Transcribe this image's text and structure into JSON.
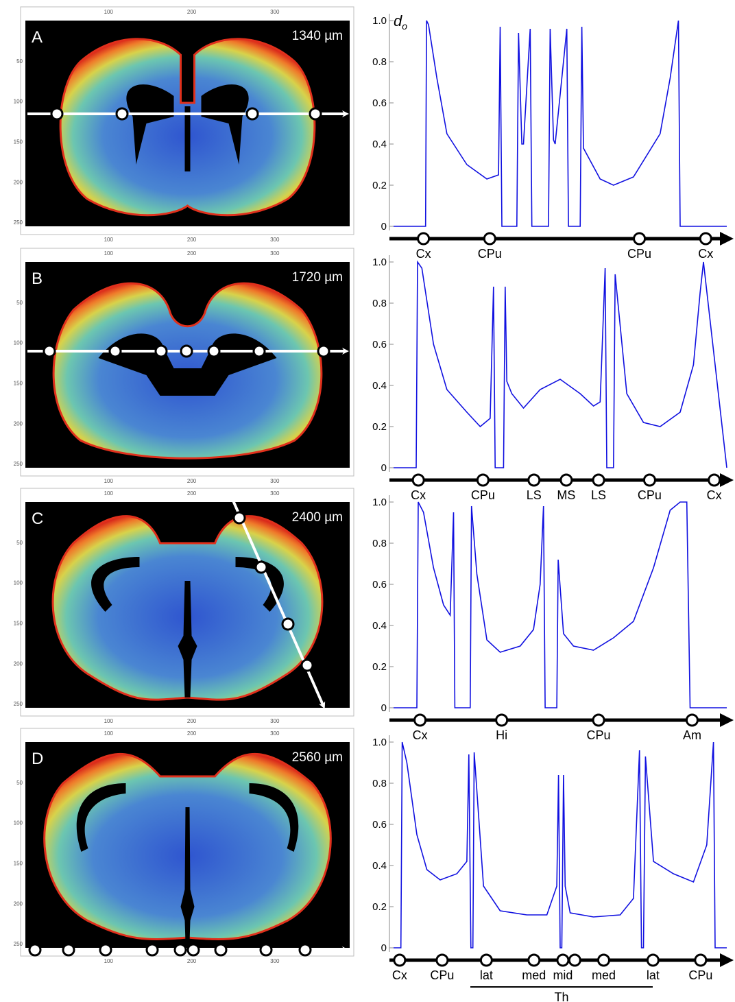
{
  "panels": [
    {
      "label": "A",
      "depth": "1340 µm",
      "structures": [
        {
          "label": "Cx",
          "pos": 0.1
        },
        {
          "label": "CPu",
          "pos": 0.295
        },
        {
          "label": "CPu",
          "pos": 0.735
        },
        {
          "label": "Cx",
          "pos": 0.93
        }
      ]
    },
    {
      "label": "B",
      "depth": "1720 µm",
      "structures": [
        {
          "label": "Cx",
          "pos": 0.085
        },
        {
          "label": "CPu",
          "pos": 0.275
        },
        {
          "label": "LS",
          "pos": 0.425
        },
        {
          "label": "MS",
          "pos": 0.52
        },
        {
          "label": "LS",
          "pos": 0.615
        },
        {
          "label": "CPu",
          "pos": 0.765
        },
        {
          "label": "Cx",
          "pos": 0.955
        }
      ]
    },
    {
      "label": "C",
      "depth": "2400 µm",
      "structures": [
        {
          "label": "Cx",
          "pos": 0.09
        },
        {
          "label": "Hi",
          "pos": 0.33
        },
        {
          "label": "CPu",
          "pos": 0.615
        },
        {
          "label": "Am",
          "pos": 0.89
        }
      ]
    },
    {
      "label": "D",
      "depth": "2560 µm",
      "structures": [
        {
          "label": "Cx",
          "pos": 0.03
        },
        {
          "label": "CPu",
          "pos": 0.155
        },
        {
          "label": "lat",
          "pos": 0.285
        },
        {
          "label": "med",
          "pos": 0.425
        },
        {
          "label": "mid",
          "pos": 0.51
        },
        {
          "label": "",
          "pos": 0.545
        },
        {
          "label": "med",
          "pos": 0.63
        },
        {
          "label": "lat",
          "pos": 0.775
        },
        {
          "label": "CPu",
          "pos": 0.915
        }
      ],
      "group_label": "Th"
    }
  ],
  "image_axes": {
    "x_ticks": [
      100,
      200,
      300
    ],
    "y_ticks": [
      50,
      100,
      150,
      200,
      250
    ],
    "x_range": [
      0,
      390
    ],
    "y_range": [
      0,
      255
    ]
  },
  "colors": {
    "trace": "#1010e0",
    "brain_fill": "#3f6fd0",
    "brain_edge": "#e0301c",
    "background": "#000000",
    "overlay": "#ffffff"
  },
  "chart_data": [
    {
      "type": "line",
      "panel": "A",
      "ylabel": "d",
      "ylabel_sub": "o",
      "ylim": [
        0,
        1.0
      ],
      "y_ticks": [
        "0",
        "0.2",
        "0.4",
        "0.6",
        "0.8",
        "1.0"
      ],
      "x": [
        0,
        0.096,
        0.099,
        0.105,
        0.13,
        0.16,
        0.22,
        0.28,
        0.315,
        0.32,
        0.325,
        0.335,
        0.34,
        0.37,
        0.375,
        0.385,
        0.39,
        0.41,
        0.415,
        0.465,
        0.47,
        0.48,
        0.485,
        0.52,
        0.525,
        0.56,
        0.565,
        0.57,
        0.62,
        0.66,
        0.72,
        0.8,
        0.83,
        0.855,
        0.86,
        1.0
      ],
      "values": [
        0,
        0,
        1.0,
        0.98,
        0.72,
        0.45,
        0.3,
        0.23,
        0.25,
        0.97,
        0.0,
        0.0,
        0.0,
        0.0,
        0.94,
        0.4,
        0.4,
        0.96,
        0.0,
        0.0,
        0.96,
        0.42,
        0.4,
        0.96,
        0.0,
        0.0,
        0.97,
        0.38,
        0.23,
        0.2,
        0.24,
        0.45,
        0.72,
        1.0,
        0.0,
        0
      ]
    },
    {
      "type": "line",
      "panel": "B",
      "ylabel": "",
      "ylim": [
        0,
        1.0
      ],
      "y_ticks": [
        "0",
        "0.2",
        "0.4",
        "0.6",
        "0.8",
        "1.0"
      ],
      "x": [
        0,
        0.068,
        0.072,
        0.085,
        0.12,
        0.16,
        0.22,
        0.26,
        0.29,
        0.3,
        0.305,
        0.33,
        0.335,
        0.34,
        0.355,
        0.39,
        0.44,
        0.5,
        0.56,
        0.6,
        0.62,
        0.635,
        0.64,
        0.66,
        0.665,
        0.7,
        0.75,
        0.8,
        0.86,
        0.9,
        0.92,
        0.93,
        1.0
      ],
      "values": [
        0,
        0,
        1.0,
        0.97,
        0.6,
        0.38,
        0.27,
        0.2,
        0.24,
        0.88,
        0.0,
        0.0,
        0.88,
        0.42,
        0.36,
        0.29,
        0.38,
        0.43,
        0.36,
        0.3,
        0.32,
        0.97,
        0.0,
        0.0,
        0.94,
        0.36,
        0.22,
        0.2,
        0.27,
        0.5,
        0.85,
        1.0,
        0
      ]
    },
    {
      "type": "line",
      "panel": "C",
      "ylabel": "",
      "ylim": [
        0,
        1.0
      ],
      "y_ticks": [
        "0",
        "0.2",
        "0.4",
        "0.6",
        "0.8",
        "1.0"
      ],
      "x": [
        0,
        0.07,
        0.074,
        0.09,
        0.12,
        0.15,
        0.17,
        0.18,
        0.184,
        0.23,
        0.234,
        0.25,
        0.28,
        0.32,
        0.38,
        0.42,
        0.44,
        0.45,
        0.455,
        0.49,
        0.494,
        0.51,
        0.54,
        0.6,
        0.66,
        0.72,
        0.78,
        0.83,
        0.86,
        0.88,
        0.89,
        1.0
      ],
      "values": [
        0,
        0,
        1.0,
        0.95,
        0.68,
        0.5,
        0.45,
        0.95,
        0.0,
        0.0,
        0.98,
        0.65,
        0.33,
        0.27,
        0.3,
        0.38,
        0.6,
        0.98,
        0.0,
        0.0,
        0.72,
        0.36,
        0.3,
        0.28,
        0.34,
        0.42,
        0.68,
        0.96,
        1.0,
        1.0,
        0.0,
        0
      ]
    },
    {
      "type": "line",
      "panel": "D",
      "ylabel": "",
      "ylim": [
        0,
        1.0
      ],
      "y_ticks": [
        "0",
        "0.2",
        "0.4",
        "0.6",
        "0.8",
        "1.0"
      ],
      "x": [
        0,
        0.022,
        0.026,
        0.04,
        0.07,
        0.1,
        0.14,
        0.19,
        0.22,
        0.226,
        0.232,
        0.238,
        0.242,
        0.27,
        0.32,
        0.4,
        0.46,
        0.49,
        0.495,
        0.5,
        0.505,
        0.51,
        0.515,
        0.53,
        0.6,
        0.68,
        0.72,
        0.738,
        0.744,
        0.75,
        0.756,
        0.78,
        0.84,
        0.9,
        0.94,
        0.96,
        0.965,
        1.0
      ],
      "values": [
        0,
        0,
        1.0,
        0.9,
        0.55,
        0.38,
        0.33,
        0.36,
        0.42,
        0.94,
        0.0,
        0.0,
        0.95,
        0.3,
        0.18,
        0.16,
        0.16,
        0.3,
        0.84,
        0.0,
        0.0,
        0.84,
        0.3,
        0.17,
        0.15,
        0.16,
        0.24,
        0.96,
        0.0,
        0.0,
        0.93,
        0.42,
        0.36,
        0.32,
        0.5,
        1.0,
        0.0,
        0
      ]
    }
  ]
}
